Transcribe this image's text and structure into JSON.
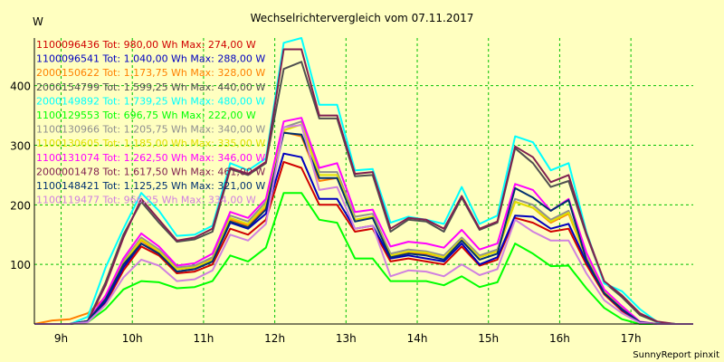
{
  "chart_data": {
    "type": "line",
    "title": "Wechselrichtervergleich vom 07.11.2017",
    "ylabel": "W",
    "footer": "SunnyReport pinxit",
    "ylim": [
      0,
      480
    ],
    "yticks": [
      100,
      200,
      300,
      400
    ],
    "xlim": [
      8.625,
      17.875
    ],
    "xticks": [
      9,
      10,
      11,
      12,
      13,
      14,
      15,
      16,
      17
    ],
    "xtick_labels": [
      "9h",
      "10h",
      "11h",
      "12h",
      "13h",
      "14h",
      "15h",
      "16h",
      "17h"
    ],
    "grid": true,
    "legend_position": "top-left",
    "x": [
      8.625,
      8.875,
      9.125,
      9.375,
      9.625,
      9.875,
      10.125,
      10.375,
      10.625,
      10.875,
      11.125,
      11.375,
      11.625,
      11.875,
      12.125,
      12.375,
      12.625,
      12.875,
      13.125,
      13.375,
      13.625,
      13.875,
      14.125,
      14.375,
      14.625,
      14.875,
      15.125,
      15.375,
      15.625,
      15.875,
      16.125,
      16.375,
      16.625,
      16.875,
      17.125,
      17.375,
      17.625,
      17.875
    ],
    "series": [
      {
        "name": "1100096436",
        "legend": "1100096436 Tot: 980,00 Wh Max: 274,00 W",
        "color": "#D00000",
        "values": [
          0,
          0,
          0,
          5,
          35,
          90,
          130,
          115,
          85,
          88,
          100,
          160,
          150,
          175,
          272,
          262,
          200,
          200,
          155,
          160,
          105,
          110,
          105,
          100,
          130,
          98,
          108,
          178,
          170,
          155,
          160,
          100,
          50,
          22,
          3,
          0,
          0,
          0
        ]
      },
      {
        "name": "1100096541",
        "legend": "1100096541 Tot: 1.040,00 Wh Max: 288,00 W",
        "color": "#0000C0",
        "values": [
          0,
          0,
          0,
          5,
          38,
          95,
          135,
          118,
          88,
          92,
          105,
          170,
          160,
          185,
          286,
          280,
          210,
          210,
          160,
          165,
          110,
          115,
          110,
          105,
          135,
          100,
          112,
          182,
          180,
          160,
          168,
          105,
          52,
          24,
          3,
          0,
          0,
          0
        ]
      },
      {
        "name": "2000150622",
        "legend": "2000150622 Tot: 1.173,75 Wh Max: 328,00 W",
        "color": "#FF8000",
        "values": [
          0,
          6,
          8,
          18,
          45,
          100,
          140,
          120,
          92,
          95,
          110,
          175,
          165,
          195,
          322,
          315,
          240,
          245,
          175,
          180,
          115,
          120,
          118,
          112,
          142,
          112,
          122,
          205,
          195,
          170,
          185,
          110,
          55,
          26,
          3,
          0,
          0,
          0
        ]
      },
      {
        "name": "2000154799",
        "legend": "2000154799 Tot: 1.599,25 Wh Max: 440,00 W",
        "color": "#505050",
        "values": [
          0,
          0,
          0,
          5,
          70,
          150,
          205,
          170,
          138,
          142,
          155,
          260,
          250,
          270,
          428,
          440,
          345,
          345,
          248,
          250,
          155,
          175,
          172,
          155,
          212,
          158,
          170,
          295,
          270,
          230,
          240,
          150,
          70,
          45,
          15,
          3,
          0,
          0
        ]
      },
      {
        "name": "2000149892",
        "legend": "2000149892 Tot: 1.739,25 Wh Max: 480,00 W",
        "color": "#00FFFF",
        "values": [
          0,
          0,
          0,
          12,
          95,
          160,
          220,
          190,
          148,
          150,
          165,
          270,
          258,
          278,
          472,
          480,
          368,
          368,
          258,
          260,
          170,
          180,
          175,
          168,
          230,
          168,
          182,
          315,
          305,
          258,
          270,
          155,
          68,
          55,
          25,
          3,
          0,
          0
        ]
      },
      {
        "name": "1100129553",
        "legend": "1100129553 Tot: 696,75 Wh Max: 222,00 W",
        "color": "#00FF00",
        "values": [
          0,
          0,
          0,
          3,
          25,
          58,
          72,
          70,
          60,
          62,
          72,
          115,
          105,
          128,
          220,
          220,
          175,
          170,
          110,
          110,
          72,
          72,
          72,
          65,
          80,
          62,
          70,
          135,
          118,
          97,
          98,
          60,
          27,
          8,
          0,
          0,
          0,
          0
        ]
      },
      {
        "name": "1100130966",
        "legend": "1100130966 Tot: 1.205,75 Wh Max: 340,00 W",
        "color": "#909090",
        "values": [
          0,
          0,
          0,
          5,
          45,
          105,
          145,
          125,
          95,
          98,
          112,
          182,
          172,
          205,
          330,
          340,
          255,
          255,
          180,
          185,
          118,
          125,
          122,
          115,
          145,
          115,
          125,
          210,
          200,
          175,
          190,
          112,
          55,
          28,
          3,
          0,
          0,
          0
        ]
      },
      {
        "name": "1100130605",
        "legend": "1100130605 Tot: 1.185,00 Wh Max: 335,00 W",
        "color": "#E0E000",
        "values": [
          0,
          0,
          0,
          5,
          44,
          102,
          142,
          122,
          92,
          95,
          108,
          178,
          168,
          200,
          325,
          335,
          250,
          250,
          175,
          180,
          115,
          122,
          120,
          112,
          142,
          112,
          122,
          205,
          195,
          172,
          187,
          110,
          54,
          27,
          3,
          0,
          0,
          0
        ]
      },
      {
        "name": "1100131074",
        "legend": "1100131074 Tot: 1.262,50 Wh Max: 346,00 W",
        "color": "#FF00FF",
        "values": [
          0,
          0,
          0,
          5,
          48,
          110,
          152,
          130,
          98,
          102,
          118,
          188,
          178,
          210,
          340,
          346,
          262,
          270,
          188,
          192,
          130,
          138,
          135,
          128,
          158,
          125,
          135,
          235,
          225,
          190,
          210,
          120,
          58,
          30,
          4,
          0,
          0,
          0
        ]
      },
      {
        "name": "2000001478",
        "legend": "2000001478 Tot: 1.617,50 Wh Max: 461,00 W",
        "color": "#802050",
        "values": [
          0,
          0,
          0,
          5,
          65,
          145,
          210,
          175,
          140,
          145,
          160,
          262,
          252,
          272,
          461,
          461,
          350,
          350,
          252,
          255,
          160,
          178,
          175,
          160,
          215,
          160,
          172,
          298,
          280,
          238,
          250,
          152,
          72,
          48,
          18,
          4,
          0,
          0
        ]
      },
      {
        "name": "1100148421",
        "legend": "1100148421 Tot: 1.125,25 Wh Max: 321,00 W",
        "color": "#003070",
        "values": [
          0,
          0,
          0,
          5,
          42,
          100,
          135,
          118,
          88,
          92,
          105,
          172,
          162,
          192,
          321,
          318,
          245,
          245,
          172,
          178,
          112,
          118,
          115,
          108,
          140,
          108,
          118,
          228,
          212,
          190,
          208,
          108,
          52,
          25,
          3,
          0,
          0,
          0
        ]
      },
      {
        "name": "1100119477",
        "legend": "1100119477 Tot: 966,25 Wh Max: 334,00 W",
        "color": "#D080E0",
        "values": [
          0,
          0,
          0,
          3,
          32,
          78,
          108,
          98,
          72,
          75,
          90,
          150,
          140,
          168,
          330,
          334,
          225,
          230,
          160,
          165,
          80,
          90,
          88,
          80,
          100,
          82,
          92,
          175,
          155,
          140,
          140,
          85,
          40,
          18,
          2,
          0,
          0,
          0
        ]
      }
    ]
  }
}
